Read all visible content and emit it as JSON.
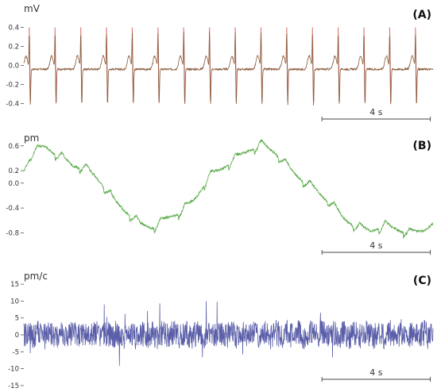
{
  "chart_data": [
    {
      "type": "line",
      "panel_label": "(A)",
      "unit": "mV",
      "color": "#8a5a3a",
      "spike_color": "#e07a7a",
      "ylim": [
        -0.48,
        0.48
      ],
      "yticks": [
        0.4,
        0.2,
        0.0,
        -0.2,
        -0.4
      ],
      "ytick_labels": [
        "0.4",
        "0.2",
        "0.0",
        "-0.2",
        "-0.4"
      ],
      "xlim": [
        0,
        15.1
      ],
      "scale_bar": {
        "label": "4 s",
        "start": 11.0,
        "end": 15.0
      },
      "peak_times": [
        0.2,
        1.15,
        2.1,
        3.05,
        4.0,
        4.95,
        5.9,
        6.85,
        7.8,
        8.75,
        9.7,
        10.65,
        11.6,
        12.55,
        13.5,
        14.45
      ],
      "r_peak": 0.38,
      "s_trough": -0.38,
      "t_wave": 0.14,
      "baseline": -0.04
    },
    {
      "type": "line",
      "panel_label": "(B)",
      "unit": "pm",
      "color": "#5aaa4a",
      "ylim": [
        -0.96,
        0.75
      ],
      "yticks": [
        0.6,
        0.2,
        0.0,
        -0.4,
        -0.8
      ],
      "ytick_labels": [
        "0.6",
        "0.2",
        "0.0",
        "-0.4",
        "-0.8"
      ],
      "xlim": [
        0,
        15.1
      ],
      "scale_bar": {
        "label": "4 s",
        "start": 11.0,
        "end": 15.0
      },
      "x": [
        0,
        0.3,
        0.8,
        1.3,
        1.8,
        2.3,
        2.8,
        3.3,
        3.8,
        4.3,
        4.8,
        5.3,
        5.8,
        6.3,
        6.8,
        7.3,
        7.8,
        8.3,
        8.8,
        9.3,
        9.8,
        10.3,
        10.8,
        11.3,
        11.8,
        12.3,
        12.8,
        13.3,
        13.8,
        14.3,
        14.8,
        15.1
      ],
      "y": [
        0.2,
        0.45,
        0.55,
        0.4,
        0.25,
        0.2,
        0.0,
        -0.3,
        -0.5,
        -0.7,
        -0.75,
        -0.6,
        -0.5,
        -0.3,
        0.05,
        0.2,
        0.35,
        0.5,
        0.58,
        0.45,
        0.2,
        0.0,
        -0.15,
        -0.35,
        -0.6,
        -0.75,
        -0.8,
        -0.72,
        -0.78,
        -0.85,
        -0.78,
        -0.65
      ],
      "beat_times": [
        0.35,
        1.25,
        2.15,
        3.05,
        4.0,
        4.9,
        5.8,
        6.75,
        7.65,
        8.6,
        9.5,
        10.4,
        11.3,
        12.25,
        13.2,
        14.1
      ],
      "beat_amp": 0.12
    },
    {
      "type": "line",
      "panel_label": "(C)",
      "unit": "pm/c",
      "color": "#5a5ea8",
      "ylim": [
        -15.5,
        15.5
      ],
      "yticks": [
        15,
        10,
        5,
        0,
        -5,
        -10,
        -15
      ],
      "ytick_labels": [
        "15",
        "10",
        "5",
        "0",
        "-5",
        "-10",
        "-15"
      ],
      "xlim": [
        0,
        15.1
      ],
      "scale_bar": {
        "label": "4 s",
        "start": 11.0,
        "end": 15.0
      },
      "noise_amplitude": 4.5,
      "peak_amplitude": 10
    }
  ]
}
